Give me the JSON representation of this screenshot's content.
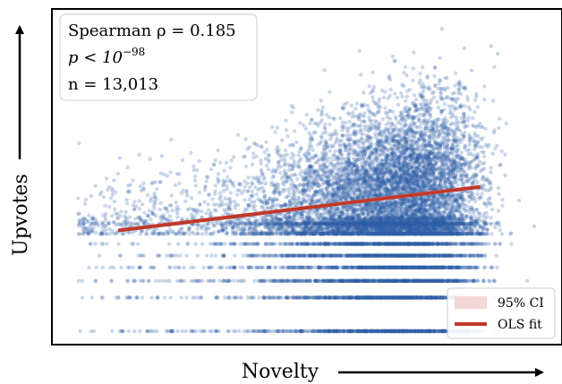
{
  "chart_data": {
    "type": "scatter",
    "title": "",
    "xlabel": "Novelty",
    "ylabel": "Upvotes",
    "xlim": [
      0,
      1
    ],
    "ylim": [
      0,
      1
    ],
    "x_ticks_shown": false,
    "y_ticks_shown": false,
    "grid": false,
    "n_points": 13013,
    "point_color": "#2f5ea8",
    "annotations": {
      "spearman": "Spearman ρ = 0.185",
      "p_prefix": "p < 10",
      "p_exponent": "−98",
      "n_label": "n = 13,013"
    },
    "fit": {
      "name": "OLS fit",
      "color": "#c0392b",
      "x": [
        0.13,
        0.84
      ],
      "y": [
        0.34,
        0.47
      ]
    },
    "ci": {
      "name": "95% CI",
      "color": "#f2d7d5"
    },
    "legend": {
      "position": "lower-right",
      "entries": [
        "95% CI",
        "OLS fit"
      ]
    }
  }
}
